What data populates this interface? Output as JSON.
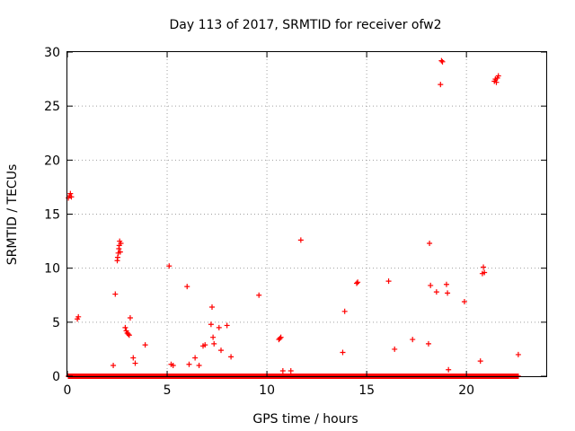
{
  "chart_data": {
    "type": "scatter",
    "title": "Day 113 of 2017, SRMTID for receiver ofw2",
    "xlabel": "GPS time / hours",
    "ylabel": "SRMTID / TECUs",
    "xlim": [
      0,
      24
    ],
    "ylim": [
      0,
      30
    ],
    "xticks": [
      0,
      5,
      10,
      15,
      20
    ],
    "yticks": [
      0,
      5,
      10,
      15,
      20,
      25,
      30
    ],
    "grid": true,
    "marker": "plus",
    "color": "#ff0000",
    "baseline": {
      "x_start": 0.05,
      "x_end": 22.6,
      "y_values": [
        0.0,
        0.05,
        0.1,
        0.15,
        0.2,
        0.25,
        0.3
      ]
    },
    "series": [
      {
        "name": "SRMTID",
        "x": [
          0.05,
          0.1,
          0.15,
          0.2,
          0.5,
          0.55,
          2.3,
          2.4,
          2.5,
          2.52,
          2.55,
          2.58,
          2.6,
          2.62,
          2.65,
          2.68,
          2.9,
          2.95,
          3.0,
          3.05,
          3.1,
          3.15,
          3.3,
          3.4,
          3.9,
          5.1,
          5.2,
          5.3,
          6.0,
          6.1,
          6.4,
          6.6,
          6.8,
          6.9,
          7.2,
          7.25,
          7.3,
          7.35,
          7.6,
          7.7,
          8.0,
          8.2,
          9.6,
          10.6,
          10.65,
          10.7,
          10.8,
          11.2,
          11.7,
          13.8,
          13.9,
          14.5,
          14.55,
          16.1,
          16.4,
          17.3,
          18.1,
          18.15,
          18.2,
          18.5,
          18.7,
          18.75,
          18.8,
          19.0,
          19.05,
          19.1,
          19.9,
          20.7,
          20.8,
          20.85,
          20.9,
          21.4,
          21.45,
          21.5,
          21.55,
          21.6,
          22.6
        ],
        "y": [
          16.5,
          16.7,
          16.9,
          16.6,
          5.3,
          5.5,
          1.0,
          7.6,
          10.7,
          11.0,
          11.4,
          11.8,
          12.1,
          12.5,
          11.5,
          12.3,
          4.5,
          4.2,
          4.0,
          3.9,
          3.8,
          5.4,
          1.7,
          1.2,
          2.9,
          10.2,
          1.1,
          1.0,
          8.3,
          1.1,
          1.7,
          1.0,
          2.8,
          2.9,
          4.8,
          6.4,
          3.6,
          3.0,
          4.5,
          2.4,
          4.7,
          1.8,
          7.5,
          3.4,
          3.5,
          3.6,
          0.5,
          0.5,
          12.6,
          2.2,
          6.0,
          8.6,
          8.7,
          8.8,
          2.5,
          3.4,
          3.0,
          12.3,
          8.4,
          7.8,
          27.0,
          29.2,
          29.1,
          8.5,
          7.7,
          0.6,
          6.9,
          1.4,
          9.5,
          10.1,
          9.6,
          27.3,
          27.5,
          27.2,
          27.6,
          27.8,
          2.0
        ]
      }
    ]
  }
}
